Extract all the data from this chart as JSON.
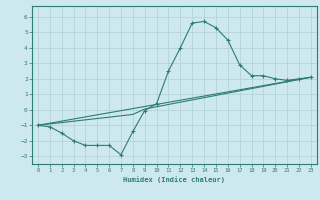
{
  "xlabel": "Humidex (Indice chaleur)",
  "ylabel": "",
  "bg_color": "#cde8ee",
  "line_color": "#2e7d6e",
  "grid_color": "#aecfd8",
  "xlim": [
    -0.5,
    23.5
  ],
  "ylim": [
    -3.5,
    6.7
  ],
  "xticks": [
    0,
    1,
    2,
    3,
    4,
    5,
    6,
    7,
    8,
    9,
    10,
    11,
    12,
    13,
    14,
    15,
    16,
    17,
    18,
    19,
    20,
    21,
    22,
    23
  ],
  "yticks": [
    -3,
    -2,
    -1,
    0,
    1,
    2,
    3,
    4,
    5,
    6
  ],
  "curve1_x": [
    0,
    1,
    2,
    3,
    4,
    5,
    6,
    7,
    8,
    9,
    10,
    11,
    12,
    13,
    14,
    15,
    16,
    17,
    18,
    19,
    20,
    21,
    22,
    23
  ],
  "curve1_y": [
    -1.0,
    -1.1,
    -1.5,
    -2.0,
    -2.3,
    -2.3,
    -2.3,
    -2.9,
    -1.4,
    -0.05,
    0.4,
    2.5,
    4.0,
    5.6,
    5.7,
    5.3,
    4.5,
    2.9,
    2.2,
    2.2,
    2.0,
    1.9,
    2.0,
    2.1
  ],
  "curve2_x": [
    0,
    23
  ],
  "curve2_y": [
    -1.0,
    2.1
  ],
  "curve3_x": [
    0,
    8,
    9,
    23
  ],
  "curve3_y": [
    -1.0,
    -0.3,
    0.05,
    2.1
  ]
}
